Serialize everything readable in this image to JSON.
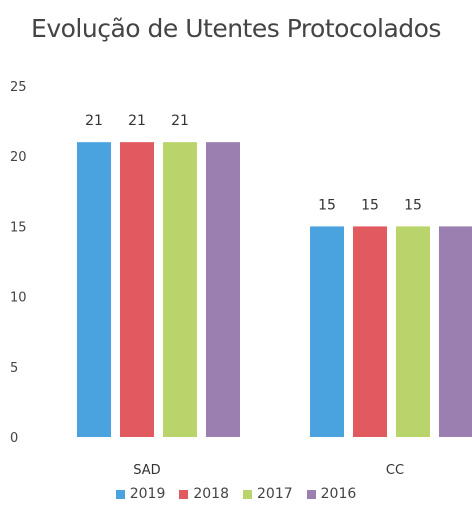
{
  "chart_data": {
    "type": "bar",
    "title": "Evolução de Utentes Protocolados",
    "categories": [
      "SAD",
      "CC"
    ],
    "series": [
      {
        "name": "2019",
        "values": [
          21,
          15
        ],
        "color": "#4aa3df",
        "labels": [
          "21",
          "15"
        ]
      },
      {
        "name": "2018",
        "values": [
          21,
          15
        ],
        "color": "#e05a60",
        "labels": [
          "21",
          "15"
        ]
      },
      {
        "name": "2017",
        "values": [
          21,
          15
        ],
        "color": "#b8d46a",
        "labels": [
          "21",
          "15"
        ]
      },
      {
        "name": "2016",
        "values": [
          21,
          15
        ],
        "color": "#9b7fb0",
        "labels": [
          "",
          ""
        ]
      }
    ],
    "y_ticks": [
      "0",
      "5",
      "10",
      "15",
      "20",
      "25"
    ],
    "ylim": [
      0,
      25
    ],
    "grid": false,
    "legend": "bottom"
  }
}
